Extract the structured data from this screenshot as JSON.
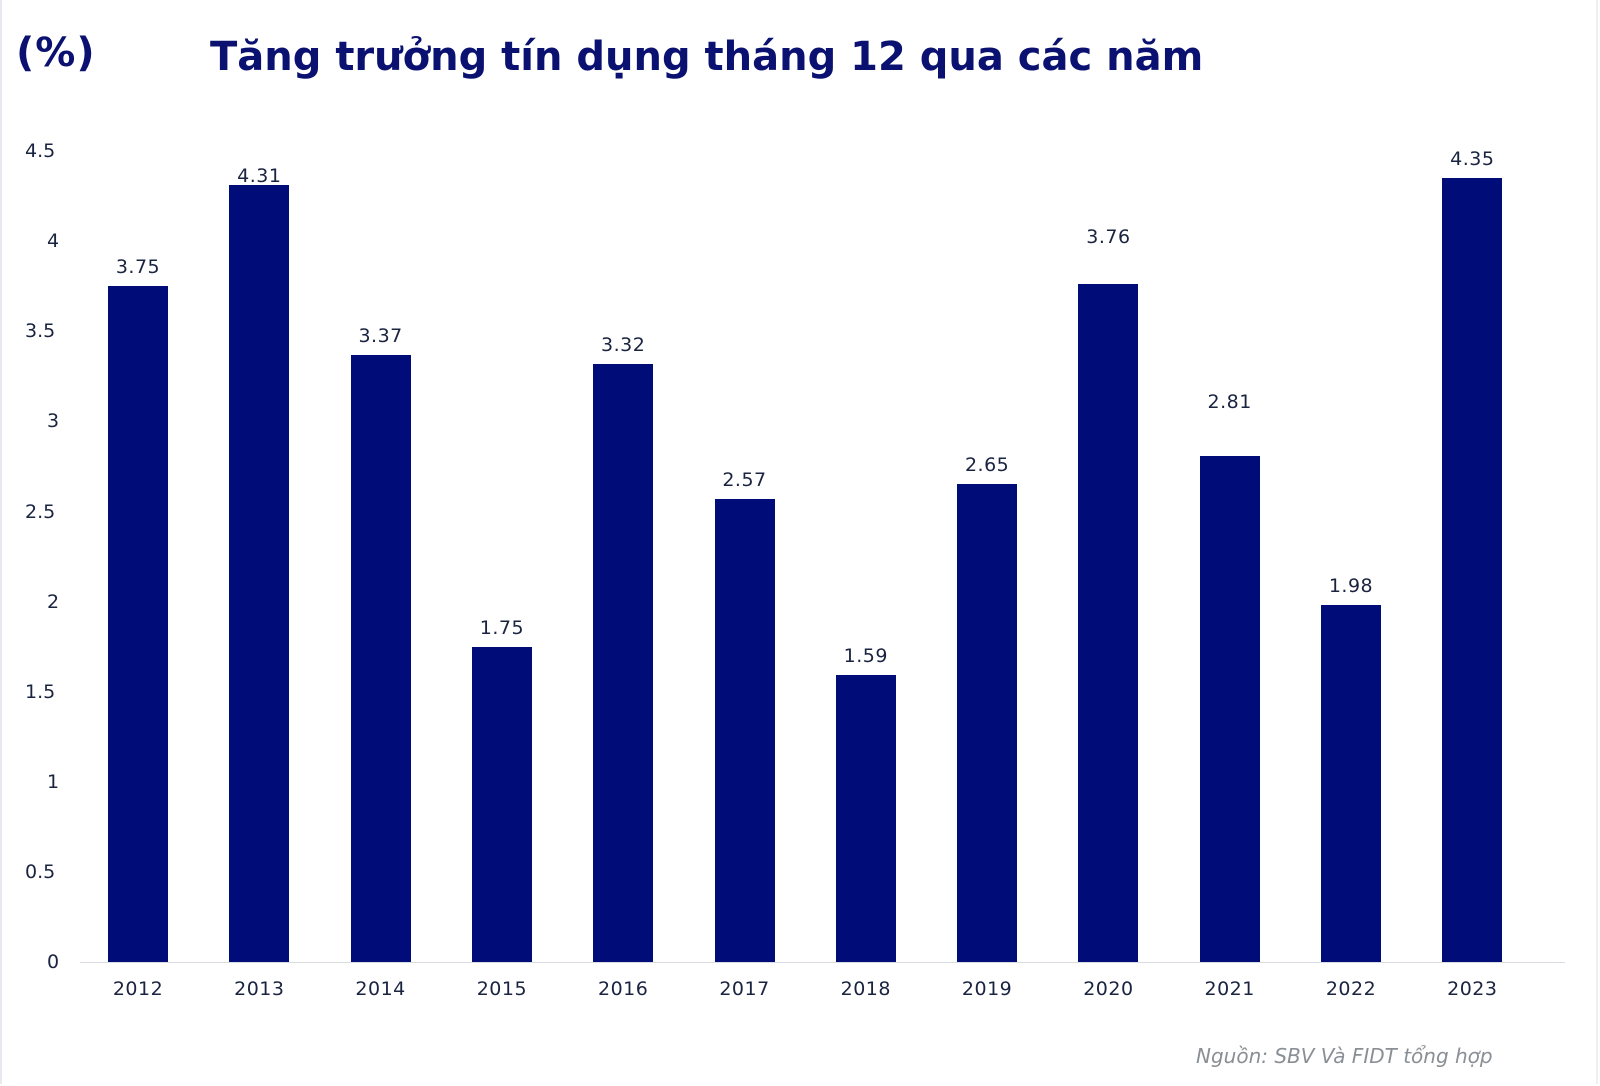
{
  "header": {
    "unit_label": "(%)",
    "title": "Tăng trưởng tín dụng tháng 12 qua các năm"
  },
  "footer": {
    "source": "Nguồn: SBV Và FIDT tổng hợp"
  },
  "colors": {
    "bar": "#000c78",
    "title": "#0a1170",
    "axis_text": "#1a2340",
    "source_text": "#8a8f96"
  },
  "chart_data": {
    "type": "bar",
    "title": "Tăng trưởng tín dụng tháng 12 qua các năm",
    "xlabel": "",
    "ylabel": "(%)",
    "ylim": [
      0,
      4.5
    ],
    "yticks": [
      "0",
      "0.5",
      "1",
      "1.5",
      "2",
      "2.5",
      "3",
      "3.5",
      "4",
      "4.5"
    ],
    "grid": false,
    "legend": null,
    "categories": [
      "2012",
      "2013",
      "2014",
      "2015",
      "2016",
      "2017",
      "2018",
      "2019",
      "2020",
      "2021",
      "2022",
      "2023"
    ],
    "values": [
      3.75,
      4.31,
      3.37,
      1.75,
      3.32,
      2.57,
      1.59,
      2.65,
      3.76,
      2.81,
      1.98,
      4.35
    ],
    "data_labels": [
      "3.75",
      "4.31",
      "3.37",
      "1.75",
      "3.32",
      "2.57",
      "1.59",
      "2.65",
      "3.76",
      "2.81",
      "1.98",
      "4.35"
    ],
    "annotations": [
      "Nguồn: SBV Và FIDT tổng hợp"
    ]
  }
}
